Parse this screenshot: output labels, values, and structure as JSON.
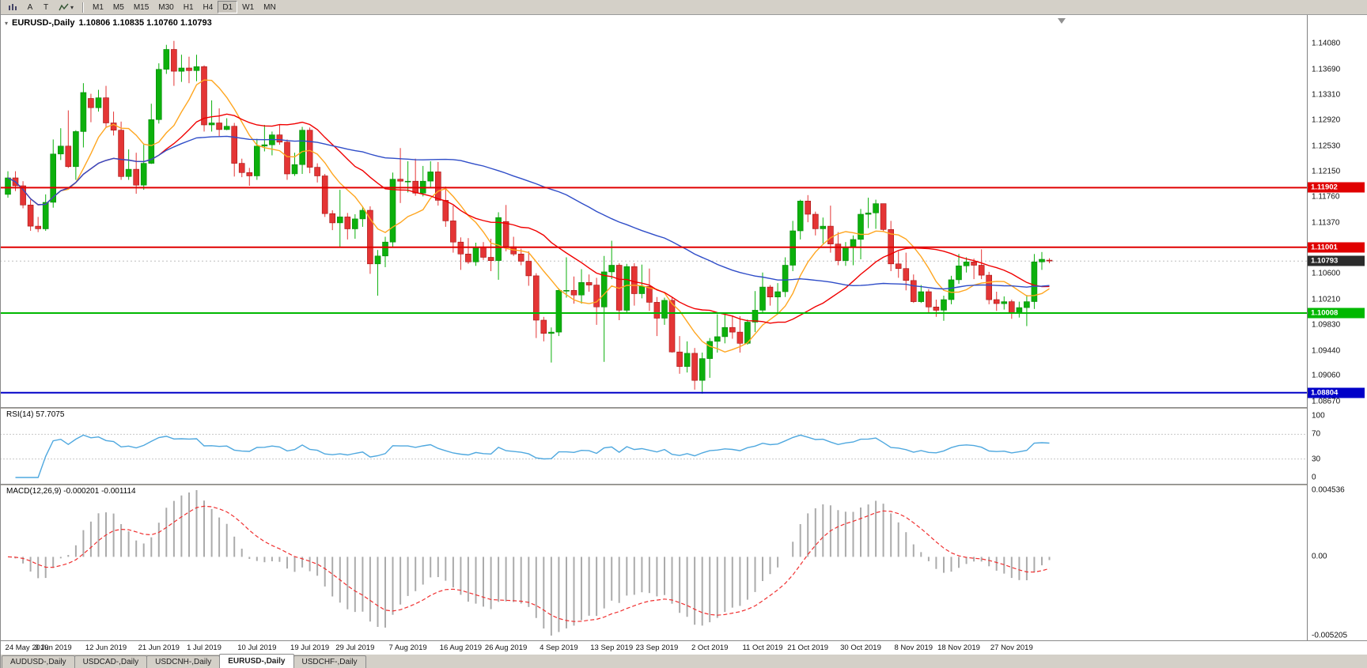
{
  "toolbar": {
    "tools": [
      {
        "name": "charts-window",
        "label": ""
      },
      {
        "name": "text-annotation",
        "label": "A"
      },
      {
        "name": "type-tool",
        "label": "T"
      },
      {
        "name": "indicators-menu",
        "label": ""
      }
    ],
    "timeframes": [
      "M1",
      "M5",
      "M15",
      "M30",
      "H1",
      "H4",
      "D1",
      "W1",
      "MN"
    ],
    "active_timeframe": "D1"
  },
  "chart": {
    "title_symbol": "EURUSD-,Daily",
    "title_ohlc": "1.10806 1.10835 1.10760 1.10793"
  },
  "price_axis": {
    "labels": [
      "1.14080",
      "1.13690",
      "1.13310",
      "1.12920",
      "1.12530",
      "1.12150",
      "1.11760",
      "1.11370",
      "1.10600",
      "1.10210",
      "1.09830",
      "1.09440",
      "1.09060",
      "1.08670"
    ],
    "current_price_label": "1.10793",
    "current_price_value": 1.10793,
    "current_price_box_color": "#2b2b2b"
  },
  "hlines": [
    {
      "value": 1.11902,
      "label": "1.11902",
      "color": "#e00000"
    },
    {
      "value": 1.11001,
      "label": "1.11001",
      "color": "#e00000"
    },
    {
      "value": 1.10008,
      "label": "1.10008",
      "color": "#00b800"
    },
    {
      "value": 1.08804,
      "label": "1.08804",
      "color": "#0000c8"
    }
  ],
  "indicators": {
    "rsi_label": "RSI(14) 57.7075",
    "rsi_levels": [
      "100",
      "70",
      "30",
      "0"
    ],
    "rsi_color": "#4fa8df",
    "macd_label": "MACD(12,26,9) -0.000201 -0.001114",
    "macd_axis": [
      "0.004536",
      "0.00",
      "-0.005205"
    ],
    "macd_histogram_color": "#ababab",
    "macd_signal_color": "#f03030"
  },
  "chart_data": {
    "type": "candlestick",
    "title": "EURUSD-,Daily",
    "symbol": "EURUSD",
    "timeframe": "Daily",
    "y_axis": {
      "min": 1.0867,
      "max": 1.1408
    },
    "bull_color": "#0cb00c",
    "bear_color": "#e43535",
    "moving_averages": [
      {
        "period": 8,
        "color": "#ffa620"
      },
      {
        "period": 21,
        "color": "#f00000"
      },
      {
        "period": 55,
        "color": "#2f4dc8"
      }
    ],
    "rsi_period": 14,
    "macd_params": [
      12,
      26,
      9
    ],
    "candles": [
      [
        "2019.05.24",
        1.118,
        1.1215,
        1.1175,
        1.1205
      ],
      [
        "2019.05.27",
        1.1205,
        1.1215,
        1.1185,
        1.1193
      ],
      [
        "2019.05.28",
        1.1193,
        1.12,
        1.1159,
        1.1164
      ],
      [
        "2019.05.29",
        1.1164,
        1.1172,
        1.1125,
        1.1132
      ],
      [
        "2019.05.30",
        1.1132,
        1.1146,
        1.1123,
        1.1128
      ],
      [
        "2019.05.31",
        1.1128,
        1.118,
        1.1125,
        1.1168
      ],
      [
        "2019.06.03",
        1.1168,
        1.1263,
        1.116,
        1.1241
      ],
      [
        "2019.06.04",
        1.1241,
        1.128,
        1.1232,
        1.1253
      ],
      [
        "2019.06.05",
        1.1253,
        1.1307,
        1.122,
        1.1222
      ],
      [
        "2019.06.06",
        1.1222,
        1.1277,
        1.1202,
        1.1275
      ],
      [
        "2019.06.07",
        1.1275,
        1.1348,
        1.1251,
        1.1334
      ],
      [
        "2019.06.10",
        1.1325,
        1.1332,
        1.1289,
        1.1311
      ],
      [
        "2019.06.11",
        1.1311,
        1.1338,
        1.1305,
        1.1326
      ],
      [
        "2019.06.12",
        1.1326,
        1.1344,
        1.1282,
        1.1288
      ],
      [
        "2019.06.13",
        1.1288,
        1.1305,
        1.1269,
        1.1277
      ],
      [
        "2019.06.14",
        1.1277,
        1.129,
        1.1202,
        1.1207
      ],
      [
        "2019.06.17",
        1.1207,
        1.1248,
        1.1202,
        1.1218
      ],
      [
        "2019.06.18",
        1.1218,
        1.1243,
        1.1181,
        1.1194
      ],
      [
        "2019.06.19",
        1.1194,
        1.1255,
        1.1187,
        1.1227
      ],
      [
        "2019.06.20",
        1.1227,
        1.1317,
        1.1226,
        1.1293
      ],
      [
        "2019.06.21",
        1.1293,
        1.1378,
        1.1287,
        1.1369
      ],
      [
        "2019.06.24",
        1.1369,
        1.1406,
        1.1362,
        1.1399
      ],
      [
        "2019.06.25",
        1.1399,
        1.1412,
        1.1344,
        1.1366
      ],
      [
        "2019.06.26",
        1.1366,
        1.1391,
        1.135,
        1.1371
      ],
      [
        "2019.06.27",
        1.1371,
        1.1388,
        1.1348,
        1.1367
      ],
      [
        "2019.06.28",
        1.1367,
        1.1391,
        1.1351,
        1.1373
      ],
      [
        "2019.07.01",
        1.1373,
        1.1375,
        1.1275,
        1.1285
      ],
      [
        "2019.07.02",
        1.1285,
        1.1322,
        1.1275,
        1.1288
      ],
      [
        "2019.07.03",
        1.1288,
        1.131,
        1.1268,
        1.1278
      ],
      [
        "2019.07.04",
        1.1278,
        1.1295,
        1.1277,
        1.1283
      ],
      [
        "2019.07.05",
        1.1283,
        1.1288,
        1.1207,
        1.1227
      ],
      [
        "2019.07.08",
        1.1227,
        1.1234,
        1.1206,
        1.1213
      ],
      [
        "2019.07.09",
        1.1213,
        1.122,
        1.1193,
        1.1208
      ],
      [
        "2019.07.10",
        1.1208,
        1.1264,
        1.1202,
        1.1253
      ],
      [
        "2019.07.11",
        1.1253,
        1.1285,
        1.1245,
        1.1255
      ],
      [
        "2019.07.12",
        1.1255,
        1.1275,
        1.1239,
        1.127
      ],
      [
        "2019.07.15",
        1.127,
        1.1285,
        1.1255,
        1.1259
      ],
      [
        "2019.07.16",
        1.1259,
        1.1263,
        1.1202,
        1.1211
      ],
      [
        "2019.07.17",
        1.1211,
        1.1243,
        1.1208,
        1.1225
      ],
      [
        "2019.07.18",
        1.1225,
        1.1282,
        1.1211,
        1.1277
      ],
      [
        "2019.07.19",
        1.1277,
        1.1281,
        1.1212,
        1.1221
      ],
      [
        "2019.07.22",
        1.1221,
        1.1227,
        1.1198,
        1.1208
      ],
      [
        "2019.07.23",
        1.1208,
        1.1211,
        1.1146,
        1.1151
      ],
      [
        "2019.07.24",
        1.1151,
        1.1156,
        1.1126,
        1.1137
      ],
      [
        "2019.07.25",
        1.1137,
        1.1187,
        1.1101,
        1.1146
      ],
      [
        "2019.07.26",
        1.1146,
        1.1152,
        1.1112,
        1.1128
      ],
      [
        "2019.07.29",
        1.1128,
        1.115,
        1.1113,
        1.1143
      ],
      [
        "2019.07.30",
        1.1143,
        1.1162,
        1.1131,
        1.1156
      ],
      [
        "2019.07.31",
        1.1156,
        1.1162,
        1.106,
        1.1075
      ],
      [
        "2019.08.01",
        1.1075,
        1.1096,
        1.1027,
        1.1087
      ],
      [
        "2019.08.02",
        1.1087,
        1.1116,
        1.107,
        1.1108
      ],
      [
        "2019.08.05",
        1.1108,
        1.1213,
        1.1101,
        1.1203
      ],
      [
        "2019.08.06",
        1.1203,
        1.125,
        1.1167,
        1.12
      ],
      [
        "2019.08.07",
        1.12,
        1.123,
        1.1183,
        1.12
      ],
      [
        "2019.08.08",
        1.12,
        1.1234,
        1.1178,
        1.1182
      ],
      [
        "2019.08.09",
        1.1182,
        1.1223,
        1.1177,
        1.12
      ],
      [
        "2019.08.12",
        1.12,
        1.123,
        1.1191,
        1.1214
      ],
      [
        "2019.08.13",
        1.1214,
        1.1229,
        1.1163,
        1.1171
      ],
      [
        "2019.08.14",
        1.1171,
        1.1192,
        1.1131,
        1.114
      ],
      [
        "2019.08.15",
        1.114,
        1.1163,
        1.1092,
        1.1108
      ],
      [
        "2019.08.16",
        1.1108,
        1.1115,
        1.1066,
        1.109
      ],
      [
        "2019.08.19",
        1.109,
        1.1114,
        1.1075,
        1.1078
      ],
      [
        "2019.08.20",
        1.1078,
        1.1107,
        1.1072,
        1.11
      ],
      [
        "2019.08.21",
        1.11,
        1.1108,
        1.1081,
        1.1085
      ],
      [
        "2019.08.22",
        1.1085,
        1.1113,
        1.1064,
        1.108
      ],
      [
        "2019.08.23",
        1.108,
        1.1153,
        1.1051,
        1.1145
      ],
      [
        "2019.08.26",
        1.1139,
        1.1164,
        1.1094,
        1.1101
      ],
      [
        "2019.08.27",
        1.1101,
        1.1116,
        1.1087,
        1.109
      ],
      [
        "2019.08.28",
        1.109,
        1.1098,
        1.1073,
        1.1079
      ],
      [
        "2019.08.29",
        1.1079,
        1.1094,
        1.1042,
        1.1057
      ],
      [
        "2019.08.30",
        1.1057,
        1.1061,
        1.0963,
        1.099
      ],
      [
        "2019.09.02",
        1.099,
        1.0995,
        1.0958,
        1.097
      ],
      [
        "2019.09.03",
        1.097,
        1.0979,
        1.0926,
        1.0972
      ],
      [
        "2019.09.04",
        1.0972,
        1.1038,
        1.0966,
        1.1035
      ],
      [
        "2019.09.05",
        1.1035,
        1.1085,
        1.1024,
        1.1035
      ],
      [
        "2019.09.06",
        1.1035,
        1.1056,
        1.1015,
        1.1028
      ],
      [
        "2019.09.09",
        1.1028,
        1.1067,
        1.1015,
        1.1047
      ],
      [
        "2019.09.10",
        1.1047,
        1.1059,
        1.1033,
        1.1043
      ],
      [
        "2019.09.11",
        1.1043,
        1.1054,
        1.0983,
        1.101
      ],
      [
        "2019.09.12",
        1.101,
        1.1087,
        1.0927,
        1.1063
      ],
      [
        "2019.09.13",
        1.1063,
        1.111,
        1.1052,
        1.1073
      ],
      [
        "2019.09.16",
        1.1073,
        1.1076,
        1.099,
        1.1005
      ],
      [
        "2019.09.17",
        1.1005,
        1.1075,
        1.1,
        1.1071
      ],
      [
        "2019.09.18",
        1.1071,
        1.1076,
        1.1012,
        1.103
      ],
      [
        "2019.09.19",
        1.103,
        1.1074,
        1.1023,
        1.1041
      ],
      [
        "2019.09.20",
        1.1041,
        1.1068,
        1.1004,
        1.1017
      ],
      [
        "2019.09.23",
        1.1017,
        1.1025,
        1.0966,
        1.0993
      ],
      [
        "2019.09.24",
        1.0993,
        1.1024,
        1.0983,
        1.102
      ],
      [
        "2019.09.25",
        1.102,
        1.1024,
        1.0941,
        1.0942
      ],
      [
        "2019.09.26",
        1.0942,
        1.0966,
        1.0909,
        1.092
      ],
      [
        "2019.09.27",
        1.092,
        1.0958,
        1.0911,
        1.094
      ],
      [
        "2019.09.30",
        1.094,
        1.0948,
        1.0885,
        1.0899
      ],
      [
        "2019.10.01",
        1.0899,
        1.0941,
        1.0879,
        1.0932
      ],
      [
        "2019.10.02",
        1.0932,
        1.0963,
        1.0903,
        1.0958
      ],
      [
        "2019.10.03",
        1.0958,
        1.0999,
        1.0941,
        1.0965
      ],
      [
        "2019.10.04",
        1.0965,
        1.0999,
        1.0955,
        1.0979
      ],
      [
        "2019.10.07",
        1.0979,
        1.0997,
        1.0962,
        1.0972
      ],
      [
        "2019.10.08",
        1.0972,
        1.0996,
        1.0941,
        1.0955
      ],
      [
        "2019.10.09",
        1.0955,
        1.0991,
        1.0953,
        1.0987
      ],
      [
        "2019.10.10",
        1.0987,
        1.1034,
        1.0972,
        1.1005
      ],
      [
        "2019.10.11",
        1.1005,
        1.1062,
        1.1002,
        1.104
      ],
      [
        "2019.10.14",
        1.104,
        1.1043,
        1.1012,
        1.1025
      ],
      [
        "2019.10.15",
        1.1025,
        1.1046,
        1.1001,
        1.1033
      ],
      [
        "2019.10.16",
        1.1033,
        1.1085,
        1.1025,
        1.1073
      ],
      [
        "2019.10.17",
        1.1073,
        1.114,
        1.1064,
        1.1125
      ],
      [
        "2019.10.18",
        1.1125,
        1.1172,
        1.1112,
        1.117
      ],
      [
        "2019.10.21",
        1.117,
        1.1179,
        1.1138,
        1.115
      ],
      [
        "2019.10.22",
        1.115,
        1.1154,
        1.1118,
        1.1128
      ],
      [
        "2019.10.23",
        1.1128,
        1.1145,
        1.1106,
        1.1132
      ],
      [
        "2019.10.24",
        1.1132,
        1.1163,
        1.1092,
        1.1105
      ],
      [
        "2019.10.25",
        1.1105,
        1.1123,
        1.1073,
        1.108
      ],
      [
        "2019.10.28",
        1.108,
        1.1108,
        1.1072,
        1.11
      ],
      [
        "2019.10.29",
        1.11,
        1.1118,
        1.1073,
        1.1112
      ],
      [
        "2019.10.30",
        1.1112,
        1.1158,
        1.1082,
        1.115
      ],
      [
        "2019.10.31",
        1.115,
        1.1175,
        1.1129,
        1.1152
      ],
      [
        "2019.11.01",
        1.1152,
        1.1172,
        1.1128,
        1.1166
      ],
      [
        "2019.11.04",
        1.1166,
        1.1166,
        1.1124,
        1.1127
      ],
      [
        "2019.11.05",
        1.1127,
        1.114,
        1.1064,
        1.1075
      ],
      [
        "2019.11.06",
        1.1075,
        1.1094,
        1.1054,
        1.1068
      ],
      [
        "2019.11.07",
        1.1068,
        1.1092,
        1.1035,
        1.105
      ],
      [
        "2019.11.08",
        1.105,
        1.1059,
        1.1016,
        1.1018
      ],
      [
        "2019.11.11",
        1.1018,
        1.1043,
        1.1016,
        1.1033
      ],
      [
        "2019.11.12",
        1.1033,
        1.1037,
        1.1002,
        1.101
      ],
      [
        "2019.11.13",
        1.101,
        1.1021,
        1.0995,
        1.1005
      ],
      [
        "2019.11.14",
        1.1005,
        1.1027,
        1.0989,
        1.1021
      ],
      [
        "2019.11.15",
        1.1021,
        1.1057,
        1.1014,
        1.1051
      ],
      [
        "2019.11.18",
        1.1051,
        1.109,
        1.1045,
        1.1072
      ],
      [
        "2019.11.19",
        1.1072,
        1.1085,
        1.1062,
        1.1078
      ],
      [
        "2019.11.20",
        1.1078,
        1.1083,
        1.1052,
        1.1073
      ],
      [
        "2019.11.21",
        1.1073,
        1.1097,
        1.1052,
        1.1058
      ],
      [
        "2019.11.22",
        1.1058,
        1.1063,
        1.1014,
        1.1021
      ],
      [
        "2019.11.25",
        1.1021,
        1.1033,
        1.1004,
        1.1015
      ],
      [
        "2019.11.26",
        1.1015,
        1.1026,
        1.1006,
        1.1018
      ],
      [
        "2019.11.27",
        1.1018,
        1.1021,
        1.0992,
        1.1001
      ],
      [
        "2019.11.28",
        1.1001,
        1.1018,
        1.0994,
        1.1009
      ],
      [
        "2019.11.29",
        1.1009,
        1.1028,
        1.0981,
        1.1018
      ],
      [
        "2019.12.02",
        1.1018,
        1.109,
        1.1007,
        1.1078
      ],
      [
        "2019.12.03",
        1.1078,
        1.1093,
        1.1066,
        1.1082
      ],
      [
        "2019.12.04",
        1.10806,
        1.10835,
        1.1076,
        1.10793
      ]
    ]
  },
  "date_axis": [
    [
      "24 May 2019",
      "2019.05.24"
    ],
    [
      "3 Jun 2019",
      "2019.06.03"
    ],
    [
      "12 Jun 2019",
      "2019.06.12"
    ],
    [
      "21 Jun 2019",
      "2019.06.21"
    ],
    [
      "1 Jul 2019",
      "2019.07.01"
    ],
    [
      "10 Jul 2019",
      "2019.07.10"
    ],
    [
      "19 Jul 2019",
      "2019.07.19"
    ],
    [
      "29 Jul 2019",
      "2019.07.29"
    ],
    [
      "7 Aug 2019",
      "2019.08.07"
    ],
    [
      "16 Aug 2019",
      "2019.08.16"
    ],
    [
      "26 Aug 2019",
      "2019.08.26"
    ],
    [
      "4 Sep 2019",
      "2019.09.04"
    ],
    [
      "13 Sep 2019",
      "2019.09.13"
    ],
    [
      "23 Sep 2019",
      "2019.09.23"
    ],
    [
      "2 Oct 2019",
      "2019.10.02"
    ],
    [
      "11 Oct 2019",
      "2019.10.11"
    ],
    [
      "21 Oct 2019",
      "2019.10.21"
    ],
    [
      "30 Oct 2019",
      "2019.10.30"
    ],
    [
      "8 Nov 2019",
      "2019.11.08"
    ],
    [
      "18 Nov 2019",
      "2019.11.18"
    ],
    [
      "27 Nov 2019",
      "2019.11.27"
    ]
  ],
  "tabs": [
    {
      "label": "AUDUSD-,Daily",
      "active": false
    },
    {
      "label": "USDCAD-,Daily",
      "active": false
    },
    {
      "label": "USDCNH-,Daily",
      "active": false
    },
    {
      "label": "EURUSD-,Daily",
      "active": true
    },
    {
      "label": "USDCHF-,Daily",
      "active": false
    }
  ]
}
